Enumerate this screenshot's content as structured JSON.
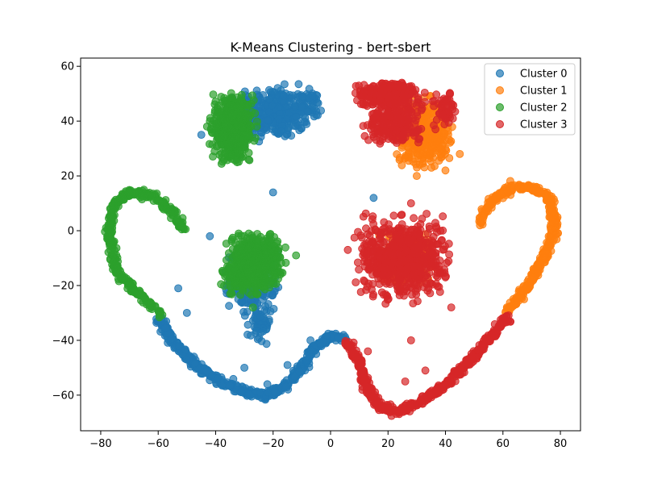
{
  "chart_data": {
    "type": "scatter",
    "title": "K-Means Clustering - bert-sbert",
    "xlabel": "",
    "ylabel": "",
    "xlim": [
      -87,
      87
    ],
    "ylim": [
      -73,
      63
    ],
    "xticks": [
      -80,
      -60,
      -40,
      -20,
      0,
      20,
      40,
      60,
      80
    ],
    "yticks": [
      -60,
      -40,
      -20,
      0,
      20,
      40,
      60
    ],
    "grid": false,
    "legend_position": "top-right",
    "series": [
      {
        "name": "Cluster 0",
        "color": "#1f77b4",
        "blobs": [
          {
            "cx": -20,
            "cy": 43,
            "rx": 13,
            "ry": 9,
            "n": 360
          },
          {
            "cx": -8,
            "cy": 46,
            "rx": 5,
            "ry": 5,
            "n": 40
          },
          {
            "cx": -27,
            "cy": -18,
            "rx": 8,
            "ry": 10,
            "n": 260
          },
          {
            "cx": -25,
            "cy": -35,
            "rx": 4,
            "ry": 7,
            "n": 50
          }
        ],
        "curves": [
          {
            "points": [
              [
                -60,
                -32
              ],
              [
                -55,
                -40
              ],
              [
                -47,
                -49
              ],
              [
                -38,
                -55
              ],
              [
                -30,
                -59
              ],
              [
                -22,
                -60
              ],
              [
                -16,
                -57
              ],
              [
                -10,
                -50
              ],
              [
                -6,
                -43
              ],
              [
                0,
                -39
              ],
              [
                5,
                -39
              ]
            ],
            "n": 520,
            "spread": 1.1
          }
        ],
        "points": [
          [
            -45,
            35
          ],
          [
            -20,
            14
          ],
          [
            -42,
            -2
          ],
          [
            -53,
            -21
          ],
          [
            -50,
            -30
          ],
          [
            -30,
            -50
          ],
          [
            -15,
            -49
          ],
          [
            -22,
            -56
          ],
          [
            -5,
            -45
          ],
          [
            -7,
            -40
          ],
          [
            15,
            12
          ]
        ]
      },
      {
        "name": "Cluster 1",
        "color": "#ff7f0e",
        "blobs": [
          {
            "cx": 32,
            "cy": 36,
            "rx": 9,
            "ry": 11,
            "n": 480
          },
          {
            "cx": 26,
            "cy": -10,
            "rx": 9,
            "ry": 9,
            "n": 260
          }
        ],
        "curves": [
          {
            "points": [
              [
                52,
                2
              ],
              [
                53,
                6
              ],
              [
                57,
                12
              ],
              [
                63,
                16
              ],
              [
                70,
                16
              ],
              [
                76,
                12
              ],
              [
                78,
                4
              ],
              [
                77,
                -3
              ],
              [
                74,
                -10
              ],
              [
                70,
                -18
              ],
              [
                66,
                -24
              ],
              [
                62,
                -29
              ]
            ],
            "n": 420,
            "spread": 1.1
          }
        ],
        "points": [
          [
            40,
            22
          ],
          [
            30,
            20
          ],
          [
            45,
            28
          ]
        ]
      },
      {
        "name": "Cluster 2",
        "color": "#2ca02c",
        "blobs": [
          {
            "cx": -34,
            "cy": 37,
            "rx": 7,
            "ry": 11,
            "n": 520
          },
          {
            "cx": -26,
            "cy": -10,
            "rx": 9,
            "ry": 9,
            "n": 380
          },
          {
            "cx": -30,
            "cy": -18,
            "rx": 7,
            "ry": 6,
            "n": 120
          }
        ],
        "curves": [
          {
            "points": [
              [
                -51,
                0
              ],
              [
                -55,
                7
              ],
              [
                -62,
                13
              ],
              [
                -70,
                14
              ],
              [
                -76,
                9
              ],
              [
                -77,
                0
              ],
              [
                -76,
                -9
              ],
              [
                -73,
                -17
              ],
              [
                -67,
                -23
              ],
              [
                -62,
                -28
              ],
              [
                -58,
                -31
              ]
            ],
            "n": 360,
            "spread": 1.1
          }
        ],
        "points": [
          [
            -42,
            40
          ],
          [
            -43,
            38
          ],
          [
            -12,
            -9
          ],
          [
            -27,
            -28
          ]
        ]
      },
      {
        "name": "Cluster 3",
        "color": "#d62728",
        "blobs": [
          {
            "cx": 20,
            "cy": 50,
            "rx": 11,
            "ry": 4,
            "n": 260
          },
          {
            "cx": 22,
            "cy": 40,
            "rx": 9,
            "ry": 8,
            "n": 240
          },
          {
            "cx": 40,
            "cy": 44,
            "rx": 4,
            "ry": 6,
            "n": 60
          },
          {
            "cx": 25,
            "cy": -10,
            "rx": 14,
            "ry": 14,
            "n": 620
          }
        ],
        "curves": [
          {
            "points": [
              [
                6,
                -41
              ],
              [
                10,
                -48
              ],
              [
                13,
                -58
              ],
              [
                17,
                -64
              ],
              [
                24,
                -66
              ],
              [
                32,
                -62
              ],
              [
                40,
                -56
              ],
              [
                48,
                -48
              ],
              [
                55,
                -40
              ],
              [
                62,
                -31
              ]
            ],
            "n": 480,
            "spread": 1.1
          }
        ],
        "points": [
          [
            28,
            10
          ],
          [
            13,
            -44
          ],
          [
            26,
            -55
          ],
          [
            33,
            -51
          ],
          [
            28,
            -40
          ],
          [
            40,
            -17
          ],
          [
            42,
            -28
          ],
          [
            6,
            -7
          ]
        ]
      }
    ]
  }
}
